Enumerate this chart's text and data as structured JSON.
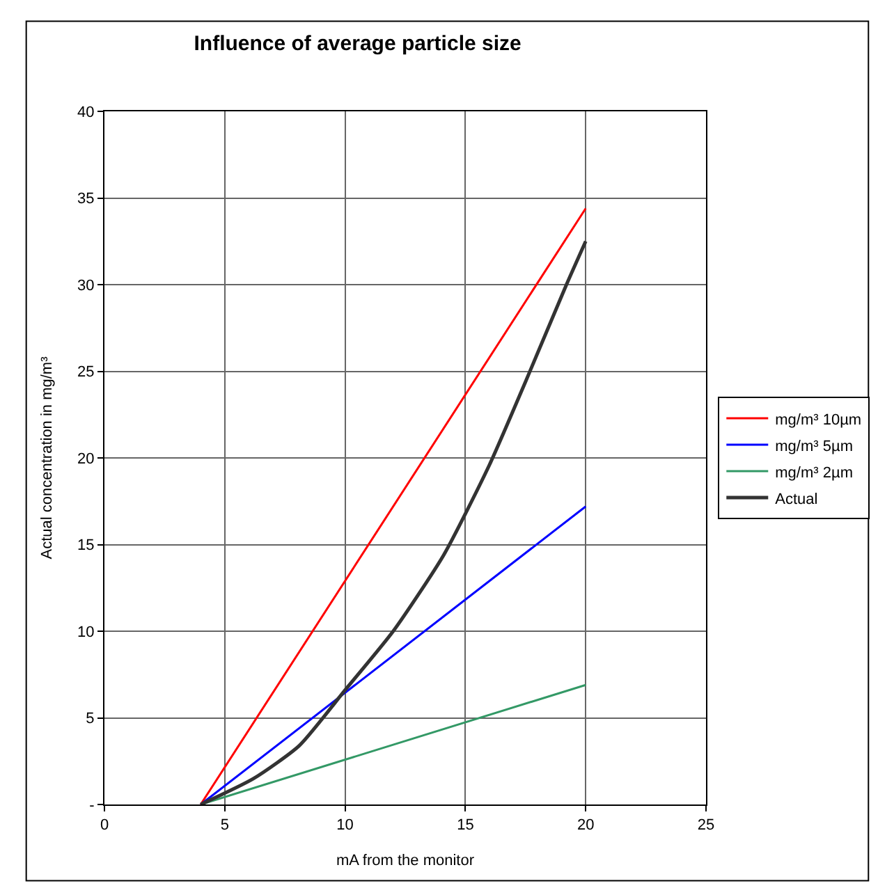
{
  "chart_data": {
    "type": "line",
    "title": "Influence of average particle size",
    "xlabel": "mA from the monitor",
    "ylabel": "Actual concentration in mg/m³",
    "xlim": [
      0,
      25
    ],
    "xticks": [
      0,
      5,
      10,
      15,
      20,
      25
    ],
    "ylim": [
      0,
      40
    ],
    "yticks": [
      {
        "value": 0,
        "label": "-"
      },
      5,
      10,
      15,
      20,
      25,
      30,
      35,
      40
    ],
    "grid": true,
    "legend": "right",
    "marker": "none",
    "line_style": "solid",
    "series": [
      {
        "name": "mg/m³ 10µm",
        "color": "#ff0000",
        "x": [
          4,
          20
        ],
        "values": [
          0,
          34.4
        ]
      },
      {
        "name": "mg/m³ 5µm",
        "color": "#0000ff",
        "x": [
          4,
          20
        ],
        "values": [
          0,
          17.2
        ]
      },
      {
        "name": "mg/m³ 2µm",
        "color": "#339966",
        "x": [
          4,
          20
        ],
        "values": [
          0,
          6.9
        ]
      },
      {
        "name": "Actual",
        "color": "#333333",
        "x": [
          4,
          6.2,
          8.1,
          10,
          12,
          14.1,
          16,
          17.5,
          19.2,
          20
        ],
        "values": [
          0,
          1.5,
          3.4,
          6.6,
          10,
          14.4,
          19.6,
          24.4,
          30,
          32.5
        ]
      }
    ]
  }
}
